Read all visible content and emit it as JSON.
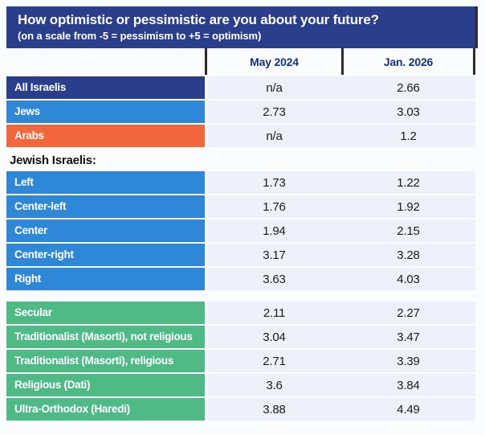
{
  "chart_data": {
    "type": "table",
    "title": "How optimistic or pessimistic are you about your future?",
    "subtitle": "(on a scale from -5 = pessimism  to +5 = optimism)",
    "columns": [
      "May 2024",
      "Jan. 2026"
    ],
    "colors": {
      "header_bg": "#2a3e8c",
      "navy_row": "#2a3e8c",
      "blue_row": "#2f87d8",
      "orange_row": "#f2673c",
      "green_row": "#4eba85",
      "cell_bg": "#eef1f9",
      "divider": "#2b2b2b",
      "column_header_text": "#16317e"
    },
    "sections": [
      {
        "heading": "",
        "rows": [
          {
            "label": "All Israelis",
            "color": "#2a3e8c",
            "values": [
              "n/a",
              "2.66"
            ]
          },
          {
            "label": "Jews",
            "color": "#2f87d8",
            "values": [
              "2.73",
              "3.03"
            ]
          },
          {
            "label": "Arabs",
            "color": "#f2673c",
            "values": [
              "n/a",
              "1.2"
            ]
          }
        ]
      },
      {
        "heading": "Jewish Israelis:",
        "rows": [
          {
            "label": "Left",
            "color": "#2f87d8",
            "values": [
              "1.73",
              "1.22"
            ]
          },
          {
            "label": "Center-left",
            "color": "#2f87d8",
            "values": [
              "1.76",
              "1.92"
            ]
          },
          {
            "label": "Center",
            "color": "#2f87d8",
            "values": [
              "1.94",
              "2.15"
            ]
          },
          {
            "label": "Center-right",
            "color": "#2f87d8",
            "values": [
              "3.17",
              "3.28"
            ]
          },
          {
            "label": "Right",
            "color": "#2f87d8",
            "values": [
              "3.63",
              "4.03"
            ]
          }
        ]
      },
      {
        "heading": "",
        "rows": [
          {
            "label": "Secular",
            "color": "#4eba85",
            "values": [
              "2.11",
              "2.27"
            ]
          },
          {
            "label": "Traditionalist (Masorti), not religious",
            "color": "#4eba85",
            "values": [
              "3.04",
              "3.47"
            ]
          },
          {
            "label": "Traditionalist (Masorti), religious",
            "color": "#4eba85",
            "values": [
              "2.71",
              "3.39"
            ]
          },
          {
            "label": "Religious (Dati)",
            "color": "#4eba85",
            "values": [
              "3.6",
              "3.84"
            ]
          },
          {
            "label": "Ultra-Orthodox (Haredi)",
            "color": "#4eba85",
            "values": [
              "3.88",
              "4.49"
            ]
          }
        ]
      }
    ]
  }
}
